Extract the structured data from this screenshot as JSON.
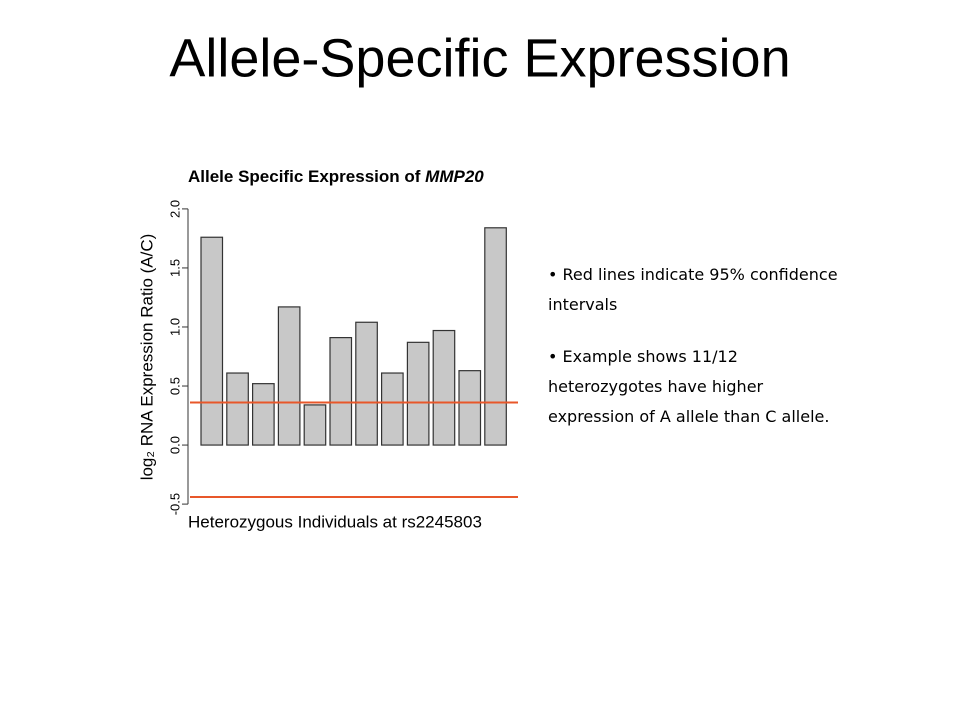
{
  "slide_title": "Allele-Specific Expression",
  "chart_data": {
    "type": "bar",
    "title": "Allele Specific Expression of",
    "title_gene": "MMP20",
    "y_label": "log₂ RNA Expression Ratio (A/C)",
    "x_label": "Heterozygous Individuals at rs2245803",
    "categories": [
      null,
      null,
      null,
      null,
      null,
      null,
      null,
      null,
      null,
      null,
      null,
      null
    ],
    "values": [
      1.76,
      0.61,
      0.52,
      1.17,
      0.34,
      0.91,
      1.04,
      0.61,
      0.87,
      0.97,
      0.63,
      1.84
    ],
    "color": "#c8c8c8",
    "ylim": [
      -0.55,
      2.05
    ],
    "yticks": [
      {
        "value": -0.5,
        "label": "-0.5"
      },
      {
        "value": 0,
        "label": "0.0"
      },
      0.5,
      {
        "value": 1,
        "label": "1.0"
      },
      1.5,
      {
        "value": 2,
        "label": "2.0"
      }
    ],
    "hlines": [
      {
        "value": 0.36,
        "color": "#e8572a"
      },
      {
        "value": -0.44,
        "color": "#e8572a"
      }
    ]
  },
  "bullets": [
    "Red lines indicate 95% confidence intervals",
    "Example shows 11/12 heterozygotes have higher expression of A allele than C allele."
  ]
}
